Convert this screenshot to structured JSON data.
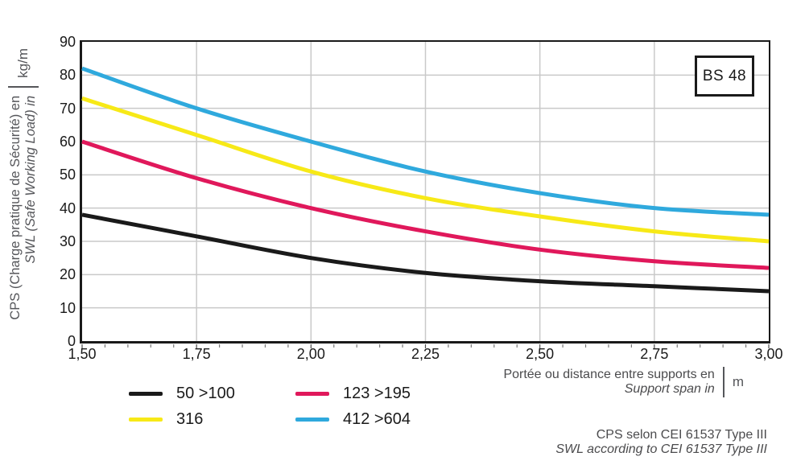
{
  "colors": {
    "grid": "#c9c9c9",
    "axis": "#1a1a1a",
    "axis_title": "#55565a",
    "tick_label": "#1a1a1a",
    "minor_tick": "#7a7a7a",
    "footer_text": "#4b4b4d"
  },
  "chart_data": {
    "type": "line",
    "title": "",
    "x": [
      1.5,
      1.75,
      2.0,
      2.25,
      2.5,
      2.75,
      3.0
    ],
    "series": [
      {
        "name": "50 >100",
        "color": "#1a1a1a",
        "values": [
          38,
          31.5,
          25,
          20.5,
          18,
          16.5,
          15
        ]
      },
      {
        "name": "316",
        "color": "#f7e917",
        "values": [
          73,
          62,
          51,
          43,
          37.5,
          33,
          30
        ]
      },
      {
        "name": "123 >195",
        "color": "#e0185b",
        "values": [
          60,
          49,
          40,
          33,
          27.5,
          24,
          22
        ]
      },
      {
        "name": "412 >604",
        "color": "#2fa9dd",
        "values": [
          82,
          70,
          60,
          51,
          44.5,
          40,
          38
        ]
      }
    ],
    "xlim": [
      1.5,
      3.0
    ],
    "ylim": [
      0,
      90
    ],
    "x_ticks": [
      1.5,
      1.75,
      2.0,
      2.25,
      2.5,
      2.75,
      3.0
    ],
    "x_tick_labels": [
      "1,50",
      "1,75",
      "2,00",
      "2,25",
      "2,50",
      "2,75",
      "3,00"
    ],
    "x_minor_step": 0.05,
    "y_ticks": [
      90,
      80,
      70,
      60,
      50,
      40,
      30,
      20,
      10,
      0
    ],
    "grid": true,
    "legend_position": "bottom",
    "annotation": "BS 48",
    "x_axis_title": {
      "fr": "Portée ou distance entre supports en",
      "en": "Support span in",
      "unit": "m"
    },
    "y_axis_title": {
      "fr": "CPS (Charge pratique de Sécurité) en",
      "en": "SWL (Safe Working Load) in",
      "unit": "kg/m"
    }
  },
  "footer": {
    "line1": "CPS selon CEI 61537 Type III",
    "line2": "SWL according to CEI 61537 Type III"
  }
}
